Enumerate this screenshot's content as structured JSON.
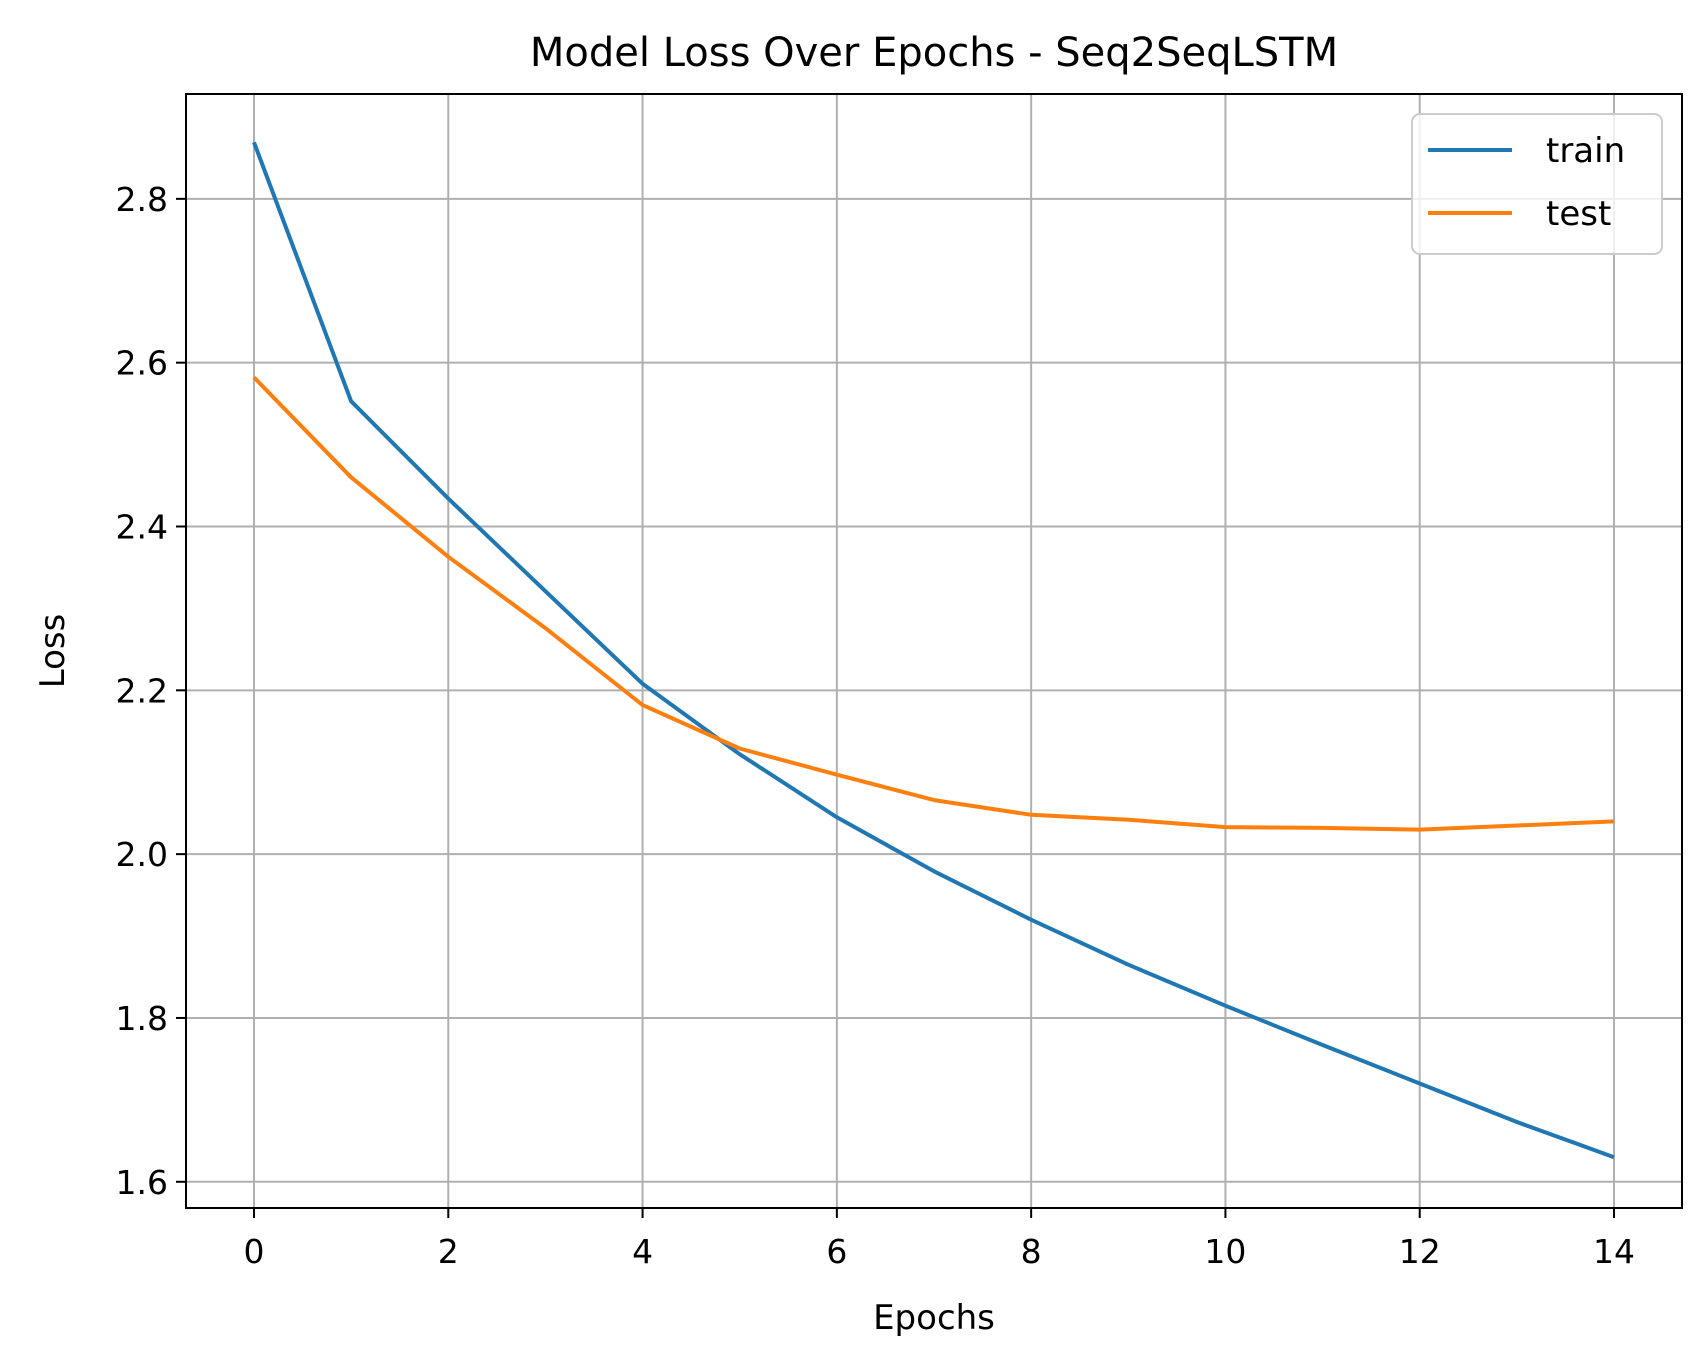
{
  "chart_data": {
    "type": "line",
    "title": "Model Loss Over Epochs - Seq2SeqLSTM",
    "xlabel": "Epochs",
    "ylabel": "Loss",
    "x": [
      0,
      1,
      2,
      3,
      4,
      5,
      6,
      7,
      8,
      9,
      10,
      11,
      12,
      13,
      14
    ],
    "xlim": [
      -0.7,
      14.7
    ],
    "ylim": [
      1.568,
      2.928
    ],
    "xticks": [
      0,
      2,
      4,
      6,
      8,
      10,
      12,
      14
    ],
    "xtick_labels": [
      "0",
      "2",
      "4",
      "6",
      "8",
      "10",
      "12",
      "14"
    ],
    "yticks": [
      1.6,
      1.8,
      2.0,
      2.2,
      2.4,
      2.6,
      2.8
    ],
    "ytick_labels": [
      "1.6",
      "1.8",
      "2.0",
      "2.2",
      "2.4",
      "2.6",
      "2.8"
    ],
    "grid": true,
    "legend_position": "top-right",
    "series": [
      {
        "name": "train",
        "color": "#1f77b4",
        "values": [
          2.869,
          2.553,
          2.434,
          2.321,
          2.208,
          2.122,
          2.045,
          1.979,
          1.92,
          1.865,
          1.815,
          1.767,
          1.72,
          1.673,
          1.63
        ]
      },
      {
        "name": "test",
        "color": "#ff7f0e",
        "values": [
          2.582,
          2.46,
          2.363,
          2.276,
          2.182,
          2.129,
          2.097,
          2.066,
          2.048,
          2.042,
          2.033,
          2.032,
          2.03,
          2.035,
          2.04
        ]
      }
    ]
  }
}
